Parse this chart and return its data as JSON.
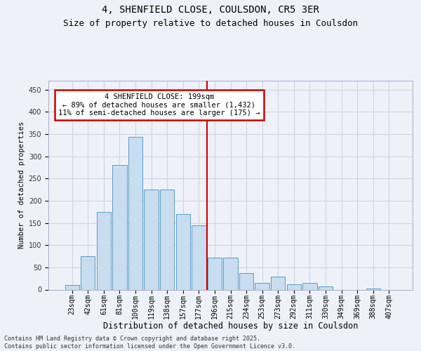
{
  "title": "4, SHENFIELD CLOSE, COULSDON, CR5 3ER",
  "subtitle": "Size of property relative to detached houses in Coulsdon",
  "xlabel": "Distribution of detached houses by size in Coulsdon",
  "ylabel": "Number of detached properties",
  "categories": [
    "23sqm",
    "42sqm",
    "61sqm",
    "81sqm",
    "100sqm",
    "119sqm",
    "138sqm",
    "157sqm",
    "177sqm",
    "196sqm",
    "215sqm",
    "234sqm",
    "253sqm",
    "273sqm",
    "292sqm",
    "311sqm",
    "330sqm",
    "349sqm",
    "369sqm",
    "388sqm",
    "407sqm"
  ],
  "values": [
    10,
    75,
    175,
    280,
    343,
    225,
    225,
    170,
    145,
    72,
    72,
    37,
    15,
    30,
    12,
    15,
    7,
    0,
    0,
    2,
    0
  ],
  "bar_color": "#c8ddef",
  "bar_edge_color": "#5b9bc8",
  "grid_color": "#cdd5e3",
  "background_color": "#eef2f8",
  "vline_color": "#cc0000",
  "vline_x": 8.5,
  "annotation_line1": "4 SHENFIELD CLOSE: 199sqm",
  "annotation_line2": "← 89% of detached houses are smaller (1,432)",
  "annotation_line3": "11% of semi-detached houses are larger (175) →",
  "annotation_box_color": "#cc0000",
  "footer_text": "Contains HM Land Registry data © Crown copyright and database right 2025.\nContains public sector information licensed under the Open Government Licence v3.0.",
  "ylim": [
    0,
    470
  ],
  "yticks": [
    0,
    50,
    100,
    150,
    200,
    250,
    300,
    350,
    400,
    450
  ],
  "title_fontsize": 10,
  "subtitle_fontsize": 9,
  "xlabel_fontsize": 8.5,
  "ylabel_fontsize": 7.5,
  "tick_fontsize": 7,
  "annotation_fontsize": 7.5,
  "footer_fontsize": 6
}
